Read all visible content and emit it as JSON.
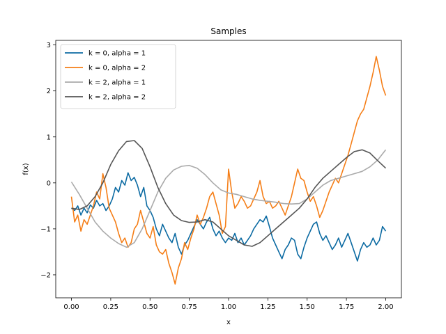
{
  "chart_data": {
    "type": "line",
    "title": "Samples",
    "xlabel": "x",
    "ylabel": "f(x)",
    "xlim": [
      -0.1,
      2.1
    ],
    "ylim": [
      -2.5,
      3.1
    ],
    "xticks": [
      0.0,
      0.25,
      0.5,
      0.75,
      1.0,
      1.25,
      1.5,
      1.75,
      2.0
    ],
    "xtick_labels": [
      "0.00",
      "0.25",
      "0.50",
      "0.75",
      "1.00",
      "1.25",
      "1.50",
      "1.75",
      "2.00"
    ],
    "yticks": [
      -2,
      -1,
      0,
      1,
      2,
      3
    ],
    "ytick_labels": [
      "−2",
      "−1",
      "0",
      "1",
      "2",
      "3"
    ],
    "grid": false,
    "legend_position": "top-left",
    "series": [
      {
        "name": "k = 0, alpha = 1",
        "color": "#0b6aa2",
        "points": [
          [
            0.0,
            -0.55
          ],
          [
            0.02,
            -0.6
          ],
          [
            0.04,
            -0.5
          ],
          [
            0.06,
            -0.7
          ],
          [
            0.08,
            -0.55
          ],
          [
            0.1,
            -0.65
          ],
          [
            0.12,
            -0.48
          ],
          [
            0.14,
            -0.55
          ],
          [
            0.16,
            -0.38
          ],
          [
            0.18,
            -0.5
          ],
          [
            0.2,
            -0.45
          ],
          [
            0.22,
            -0.6
          ],
          [
            0.24,
            -0.5
          ],
          [
            0.26,
            -0.35
          ],
          [
            0.28,
            -0.1
          ],
          [
            0.3,
            -0.2
          ],
          [
            0.32,
            0.05
          ],
          [
            0.34,
            -0.05
          ],
          [
            0.36,
            0.22
          ],
          [
            0.38,
            0.05
          ],
          [
            0.4,
            0.12
          ],
          [
            0.42,
            -0.05
          ],
          [
            0.44,
            -0.3
          ],
          [
            0.46,
            -0.1
          ],
          [
            0.48,
            -0.5
          ],
          [
            0.5,
            -0.6
          ],
          [
            0.52,
            -0.75
          ],
          [
            0.54,
            -1.0
          ],
          [
            0.56,
            -1.15
          ],
          [
            0.58,
            -0.9
          ],
          [
            0.6,
            -1.05
          ],
          [
            0.62,
            -1.2
          ],
          [
            0.64,
            -1.3
          ],
          [
            0.66,
            -1.1
          ],
          [
            0.68,
            -1.4
          ],
          [
            0.7,
            -1.55
          ],
          [
            0.72,
            -1.35
          ],
          [
            0.74,
            -1.25
          ],
          [
            0.76,
            -1.1
          ],
          [
            0.78,
            -0.95
          ],
          [
            0.8,
            -0.8
          ],
          [
            0.82,
            -0.9
          ],
          [
            0.84,
            -1.0
          ],
          [
            0.86,
            -0.85
          ],
          [
            0.88,
            -0.75
          ],
          [
            0.9,
            -1.0
          ],
          [
            0.92,
            -1.15
          ],
          [
            0.94,
            -1.05
          ],
          [
            0.96,
            -1.2
          ],
          [
            0.98,
            -1.3
          ],
          [
            1.0,
            -1.2
          ],
          [
            1.02,
            -1.25
          ],
          [
            1.04,
            -1.1
          ],
          [
            1.06,
            -1.3
          ],
          [
            1.08,
            -1.2
          ],
          [
            1.1,
            -1.35
          ],
          [
            1.12,
            -1.25
          ],
          [
            1.14,
            -1.15
          ],
          [
            1.16,
            -1.0
          ],
          [
            1.18,
            -0.9
          ],
          [
            1.2,
            -0.8
          ],
          [
            1.22,
            -0.85
          ],
          [
            1.24,
            -0.72
          ],
          [
            1.26,
            -0.95
          ],
          [
            1.28,
            -1.2
          ],
          [
            1.3,
            -1.35
          ],
          [
            1.32,
            -1.5
          ],
          [
            1.34,
            -1.65
          ],
          [
            1.36,
            -1.45
          ],
          [
            1.38,
            -1.35
          ],
          [
            1.4,
            -1.2
          ],
          [
            1.42,
            -1.25
          ],
          [
            1.44,
            -1.55
          ],
          [
            1.46,
            -1.65
          ],
          [
            1.48,
            -1.4
          ],
          [
            1.5,
            -1.2
          ],
          [
            1.52,
            -1.05
          ],
          [
            1.54,
            -0.9
          ],
          [
            1.56,
            -0.85
          ],
          [
            1.58,
            -1.1
          ],
          [
            1.6,
            -1.25
          ],
          [
            1.62,
            -1.15
          ],
          [
            1.64,
            -1.3
          ],
          [
            1.66,
            -1.45
          ],
          [
            1.68,
            -1.35
          ],
          [
            1.7,
            -1.2
          ],
          [
            1.72,
            -1.4
          ],
          [
            1.74,
            -1.25
          ],
          [
            1.76,
            -1.1
          ],
          [
            1.78,
            -1.3
          ],
          [
            1.8,
            -1.5
          ],
          [
            1.82,
            -1.7
          ],
          [
            1.84,
            -1.45
          ],
          [
            1.86,
            -1.3
          ],
          [
            1.88,
            -1.4
          ],
          [
            1.9,
            -1.35
          ],
          [
            1.92,
            -1.2
          ],
          [
            1.94,
            -1.35
          ],
          [
            1.96,
            -1.25
          ],
          [
            1.98,
            -0.95
          ],
          [
            2.0,
            -1.05
          ]
        ]
      },
      {
        "name": "k = 0, alpha = 2",
        "color": "#f57e17",
        "points": [
          [
            0.0,
            -0.3
          ],
          [
            0.02,
            -0.85
          ],
          [
            0.04,
            -0.7
          ],
          [
            0.06,
            -1.05
          ],
          [
            0.08,
            -0.8
          ],
          [
            0.1,
            -0.9
          ],
          [
            0.12,
            -0.7
          ],
          [
            0.14,
            -0.5
          ],
          [
            0.16,
            -0.2
          ],
          [
            0.18,
            -0.35
          ],
          [
            0.2,
            0.2
          ],
          [
            0.22,
            -0.1
          ],
          [
            0.24,
            -0.55
          ],
          [
            0.26,
            -0.7
          ],
          [
            0.28,
            -0.85
          ],
          [
            0.3,
            -1.1
          ],
          [
            0.32,
            -1.3
          ],
          [
            0.34,
            -1.2
          ],
          [
            0.36,
            -1.4
          ],
          [
            0.38,
            -1.3
          ],
          [
            0.4,
            -1.0
          ],
          [
            0.42,
            -0.9
          ],
          [
            0.44,
            -0.6
          ],
          [
            0.46,
            -0.85
          ],
          [
            0.48,
            -1.1
          ],
          [
            0.5,
            -1.2
          ],
          [
            0.52,
            -0.95
          ],
          [
            0.54,
            -1.35
          ],
          [
            0.56,
            -1.5
          ],
          [
            0.58,
            -1.55
          ],
          [
            0.6,
            -1.45
          ],
          [
            0.62,
            -1.75
          ],
          [
            0.64,
            -1.95
          ],
          [
            0.66,
            -2.2
          ],
          [
            0.68,
            -1.85
          ],
          [
            0.7,
            -1.65
          ],
          [
            0.72,
            -1.3
          ],
          [
            0.74,
            -1.45
          ],
          [
            0.76,
            -1.2
          ],
          [
            0.78,
            -1.0
          ],
          [
            0.8,
            -0.7
          ],
          [
            0.82,
            -0.9
          ],
          [
            0.84,
            -0.75
          ],
          [
            0.86,
            -0.55
          ],
          [
            0.88,
            -0.3
          ],
          [
            0.9,
            -0.2
          ],
          [
            0.92,
            -0.45
          ],
          [
            0.94,
            -0.7
          ],
          [
            0.96,
            -1.1
          ],
          [
            0.98,
            -0.95
          ],
          [
            1.0,
            0.3
          ],
          [
            1.02,
            -0.2
          ],
          [
            1.04,
            -0.55
          ],
          [
            1.06,
            -0.45
          ],
          [
            1.08,
            -0.3
          ],
          [
            1.1,
            -0.4
          ],
          [
            1.12,
            -0.55
          ],
          [
            1.14,
            -0.5
          ],
          [
            1.16,
            -0.35
          ],
          [
            1.18,
            -0.2
          ],
          [
            1.2,
            0.05
          ],
          [
            1.22,
            -0.3
          ],
          [
            1.24,
            -0.45
          ],
          [
            1.26,
            -0.4
          ],
          [
            1.28,
            -0.55
          ],
          [
            1.3,
            -0.5
          ],
          [
            1.32,
            -0.4
          ],
          [
            1.34,
            -0.55
          ],
          [
            1.36,
            -0.7
          ],
          [
            1.38,
            -0.5
          ],
          [
            1.4,
            -0.3
          ],
          [
            1.42,
            0.0
          ],
          [
            1.44,
            0.3
          ],
          [
            1.46,
            0.1
          ],
          [
            1.48,
            0.05
          ],
          [
            1.5,
            -0.2
          ],
          [
            1.52,
            -0.4
          ],
          [
            1.54,
            -0.3
          ],
          [
            1.56,
            -0.5
          ],
          [
            1.58,
            -0.75
          ],
          [
            1.6,
            -0.6
          ],
          [
            1.62,
            -0.4
          ],
          [
            1.64,
            -0.2
          ],
          [
            1.66,
            -0.05
          ],
          [
            1.68,
            0.1
          ],
          [
            1.7,
            0.0
          ],
          [
            1.72,
            0.2
          ],
          [
            1.74,
            0.4
          ],
          [
            1.76,
            0.6
          ],
          [
            1.78,
            0.85
          ],
          [
            1.8,
            1.1
          ],
          [
            1.82,
            1.35
          ],
          [
            1.84,
            1.5
          ],
          [
            1.86,
            1.6
          ],
          [
            1.88,
            1.85
          ],
          [
            1.9,
            2.1
          ],
          [
            1.92,
            2.4
          ],
          [
            1.94,
            2.75
          ],
          [
            1.96,
            2.45
          ],
          [
            1.98,
            2.1
          ],
          [
            2.0,
            1.9
          ]
        ]
      },
      {
        "name": "k = 2, alpha = 1",
        "color": "#aaaaaa",
        "points": [
          [
            0.0,
            0.02
          ],
          [
            0.05,
            -0.25
          ],
          [
            0.1,
            -0.55
          ],
          [
            0.15,
            -0.85
          ],
          [
            0.2,
            -1.05
          ],
          [
            0.25,
            -1.2
          ],
          [
            0.3,
            -1.32
          ],
          [
            0.35,
            -1.4
          ],
          [
            0.4,
            -1.3
          ],
          [
            0.45,
            -1.0
          ],
          [
            0.5,
            -0.6
          ],
          [
            0.55,
            -0.2
          ],
          [
            0.6,
            0.1
          ],
          [
            0.65,
            0.28
          ],
          [
            0.7,
            0.36
          ],
          [
            0.75,
            0.38
          ],
          [
            0.8,
            0.32
          ],
          [
            0.85,
            0.18
          ],
          [
            0.9,
            0.0
          ],
          [
            0.95,
            -0.15
          ],
          [
            1.0,
            -0.22
          ],
          [
            1.05,
            -0.25
          ],
          [
            1.1,
            -0.3
          ],
          [
            1.15,
            -0.35
          ],
          [
            1.2,
            -0.38
          ],
          [
            1.25,
            -0.4
          ],
          [
            1.3,
            -0.42
          ],
          [
            1.35,
            -0.45
          ],
          [
            1.4,
            -0.46
          ],
          [
            1.45,
            -0.45
          ],
          [
            1.5,
            -0.35
          ],
          [
            1.55,
            -0.2
          ],
          [
            1.6,
            -0.05
          ],
          [
            1.65,
            0.05
          ],
          [
            1.7,
            0.1
          ],
          [
            1.75,
            0.15
          ],
          [
            1.8,
            0.2
          ],
          [
            1.85,
            0.25
          ],
          [
            1.9,
            0.35
          ],
          [
            1.95,
            0.5
          ],
          [
            2.0,
            0.72
          ]
        ]
      },
      {
        "name": "k = 2, alpha = 2",
        "color": "#555555",
        "points": [
          [
            0.0,
            -0.55
          ],
          [
            0.05,
            -0.58
          ],
          [
            0.1,
            -0.5
          ],
          [
            0.15,
            -0.3
          ],
          [
            0.2,
            0.0
          ],
          [
            0.25,
            0.4
          ],
          [
            0.3,
            0.7
          ],
          [
            0.35,
            0.9
          ],
          [
            0.4,
            0.92
          ],
          [
            0.45,
            0.75
          ],
          [
            0.5,
            0.35
          ],
          [
            0.55,
            -0.1
          ],
          [
            0.6,
            -0.45
          ],
          [
            0.65,
            -0.7
          ],
          [
            0.7,
            -0.82
          ],
          [
            0.75,
            -0.86
          ],
          [
            0.8,
            -0.85
          ],
          [
            0.85,
            -0.8
          ],
          [
            0.9,
            -0.85
          ],
          [
            0.95,
            -1.0
          ],
          [
            1.0,
            -1.15
          ],
          [
            1.05,
            -1.25
          ],
          [
            1.1,
            -1.35
          ],
          [
            1.15,
            -1.38
          ],
          [
            1.2,
            -1.3
          ],
          [
            1.25,
            -1.15
          ],
          [
            1.3,
            -1.0
          ],
          [
            1.35,
            -0.85
          ],
          [
            1.4,
            -0.7
          ],
          [
            1.45,
            -0.55
          ],
          [
            1.5,
            -0.35
          ],
          [
            1.55,
            -0.1
          ],
          [
            1.6,
            0.1
          ],
          [
            1.65,
            0.25
          ],
          [
            1.7,
            0.4
          ],
          [
            1.75,
            0.55
          ],
          [
            1.8,
            0.68
          ],
          [
            1.85,
            0.72
          ],
          [
            1.9,
            0.65
          ],
          [
            1.95,
            0.48
          ],
          [
            2.0,
            0.32
          ]
        ]
      }
    ]
  }
}
